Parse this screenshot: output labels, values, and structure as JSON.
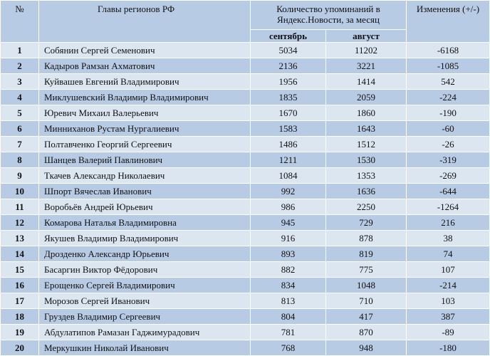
{
  "header": {
    "col_num": "№",
    "col_name": "Главы регионов РФ",
    "col_mentions": "Количество упоминаний в Яндекс.Новости, за месяц",
    "col_sep": "сентябрь",
    "col_aug": "август",
    "col_change": "Изменения (+/-)"
  },
  "rows": [
    {
      "n": "1",
      "name": "Собянин Сергей Семенович",
      "sep": "5034",
      "aug": "11202",
      "chg": "-6168"
    },
    {
      "n": "2",
      "name": "Кадыров Рамзан Ахматович",
      "sep": "2136",
      "aug": "3221",
      "chg": "-1085"
    },
    {
      "n": "3",
      "name": "Куйвашев Евгений Владимирович",
      "sep": "1956",
      "aug": "1414",
      "chg": "542"
    },
    {
      "n": "4",
      "name": "Миклушевский Владимир Владимирович",
      "sep": "1835",
      "aug": "2059",
      "chg": "-224"
    },
    {
      "n": "5",
      "name": "Юревич Михаил Валерьевич",
      "sep": "1670",
      "aug": "1860",
      "chg": "-190"
    },
    {
      "n": "6",
      "name": "Минниханов Рустам Нургалиевич",
      "sep": "1583",
      "aug": "1643",
      "chg": "-60"
    },
    {
      "n": "7",
      "name": "Полтавченко Георгий Сергеевич",
      "sep": "1486",
      "aug": "1512",
      "chg": "-26"
    },
    {
      "n": "8",
      "name": "Шанцев Валерий Павлинович",
      "sep": "1211",
      "aug": "1530",
      "chg": "-319"
    },
    {
      "n": "9",
      "name": "Ткачев Александр Николаевич",
      "sep": "1084",
      "aug": "1353",
      "chg": "-269"
    },
    {
      "n": "10",
      "name": "Шпорт Вячеслав Иванович",
      "sep": "992",
      "aug": "1636",
      "chg": "-644"
    },
    {
      "n": "11",
      "name": "Воробьёв Андрей Юрьевич",
      "sep": "986",
      "aug": "2250",
      "chg": "-1264"
    },
    {
      "n": "12",
      "name": "Комарова Наталья Владимировна",
      "sep": "945",
      "aug": "729",
      "chg": "216"
    },
    {
      "n": "13",
      "name": "Якушев Владимир Владимирович",
      "sep": "916",
      "aug": "878",
      "chg": "38"
    },
    {
      "n": "14",
      "name": "Дрозденко Александр Юрьевич",
      "sep": "893",
      "aug": "819",
      "chg": "74"
    },
    {
      "n": "15",
      "name": "Басаргин Виктор Фёдорович",
      "sep": "882",
      "aug": "775",
      "chg": "107"
    },
    {
      "n": "16",
      "name": "Ерощенко Сергей Владимирович",
      "sep": "834",
      "aug": "1048",
      "chg": "-214"
    },
    {
      "n": "17",
      "name": "Морозов Сергей Иванович",
      "sep": "813",
      "aug": "710",
      "chg": "103"
    },
    {
      "n": "18",
      "name": "Груздев Владимир Сергеевич",
      "sep": "804",
      "aug": "417",
      "chg": "387"
    },
    {
      "n": "19",
      "name": "Абдулатипов Рамазан Гаджимурадович",
      "sep": "781",
      "aug": "870",
      "chg": "-89"
    },
    {
      "n": "20",
      "name": "Меркушкин Николай Иванович",
      "sep": "768",
      "aug": "948",
      "chg": "-180"
    }
  ]
}
